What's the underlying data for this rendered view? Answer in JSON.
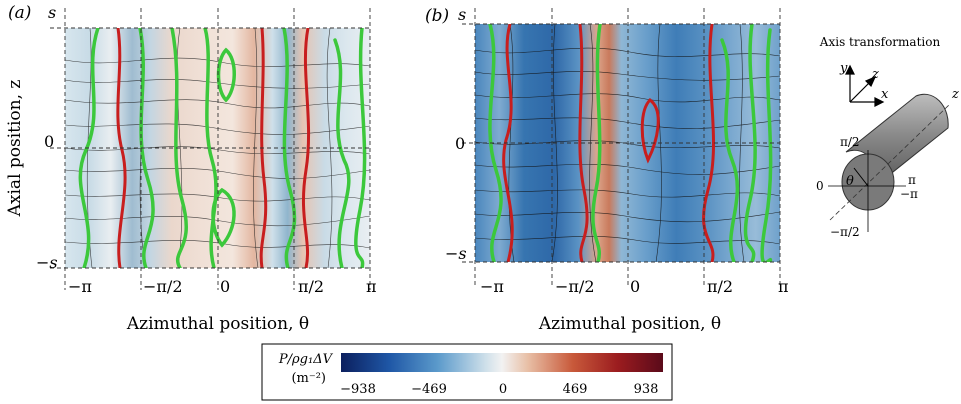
{
  "panel_a": {
    "tag": "(a)",
    "ylabel": "Axial position, z",
    "xlabel": "Azimuthal position, θ",
    "yticks": [
      "s",
      "0",
      "−s"
    ],
    "xticks": [
      "−π",
      "−π/2",
      "0",
      "π/2",
      "π"
    ]
  },
  "panel_b": {
    "tag": "(b)",
    "xlabel": "Azimuthal position, θ",
    "yticks": [
      "s",
      "0",
      "−s"
    ],
    "xticks": [
      "−π",
      "−π/2",
      "0",
      "π/2",
      "π"
    ]
  },
  "axis_diagram": {
    "title": "Axis transformation",
    "axes": [
      "y",
      "z",
      "x"
    ],
    "cylinder_axis": "z",
    "angle_symbol": "θ",
    "angle_labels": [
      "π/2",
      "0",
      "π",
      "−π",
      "−π/2"
    ]
  },
  "colorbar": {
    "label_line1": "P/ρg₁ΔV",
    "label_line2": "(m⁻²)",
    "ticks": [
      "−938",
      "−469",
      "0",
      "469",
      "938"
    ]
  }
}
